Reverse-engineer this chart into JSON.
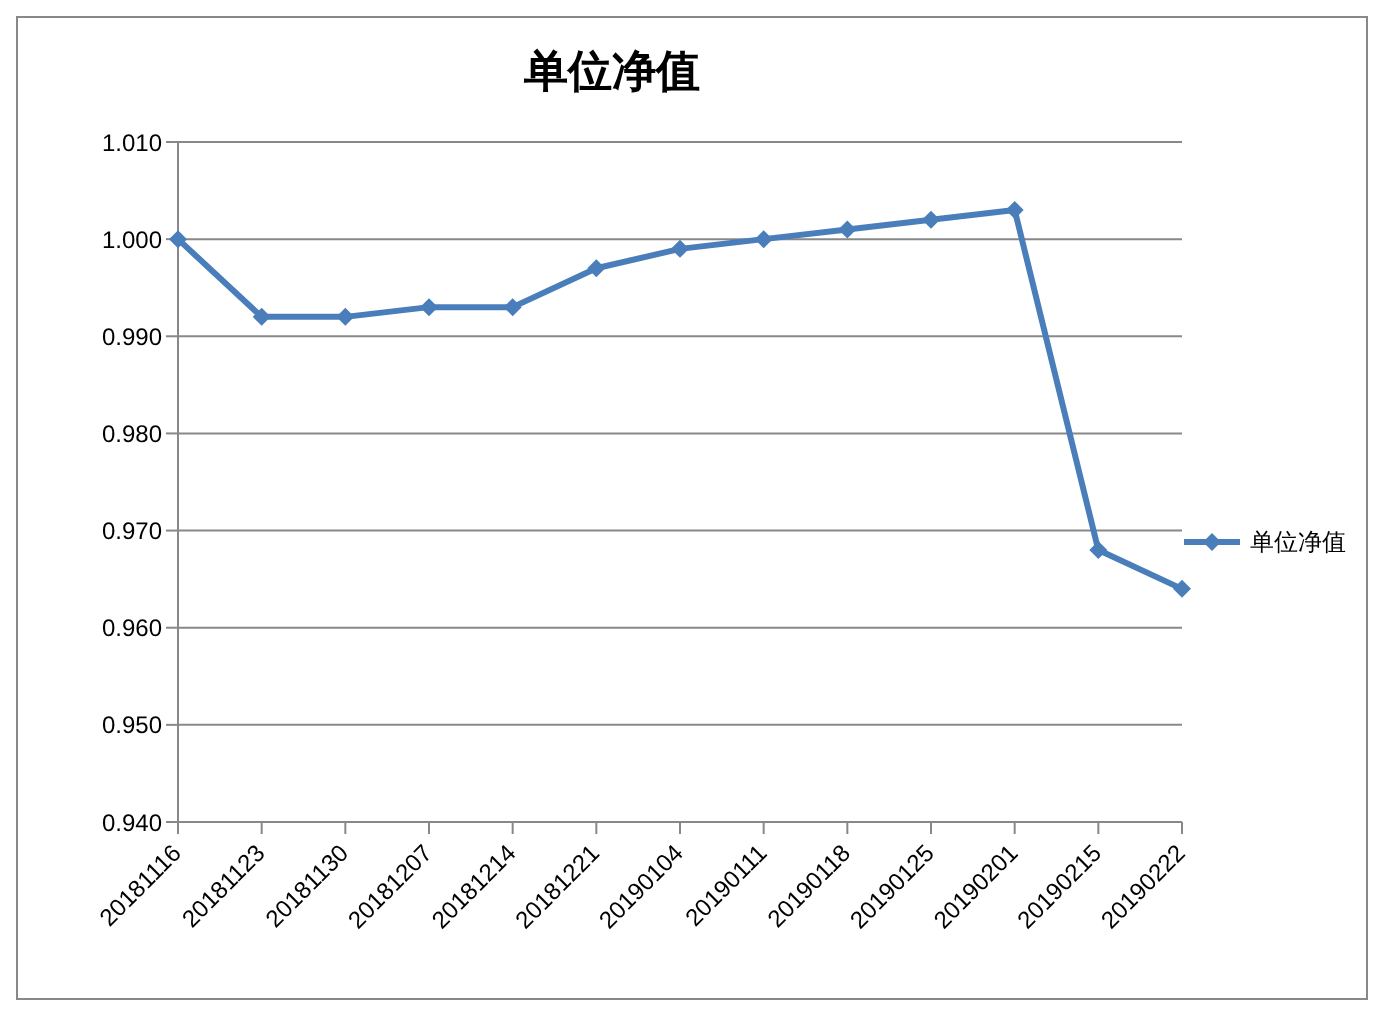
{
  "chart_data": {
    "type": "line",
    "title": "单位净值",
    "categories": [
      "20181116",
      "20181123",
      "20181130",
      "20181207",
      "20181214",
      "20181221",
      "20190104",
      "20190111",
      "20190118",
      "20190125",
      "20190201",
      "20190215",
      "20190222"
    ],
    "series": [
      {
        "name": "单位净值",
        "color": "#4a7ebb",
        "values": [
          1.0,
          0.992,
          0.992,
          0.993,
          0.993,
          0.997,
          0.999,
          1.0,
          1.001,
          1.002,
          1.003,
          0.968,
          0.964
        ]
      }
    ],
    "ylim": [
      0.94,
      1.01
    ],
    "yticks": [
      {
        "value": 0.94,
        "label": "0.940"
      },
      {
        "value": 0.95,
        "label": "0.950"
      },
      {
        "value": 0.96,
        "label": "0.960"
      },
      {
        "value": 0.97,
        "label": "0.970"
      },
      {
        "value": 0.98,
        "label": "0.980"
      },
      {
        "value": 0.99,
        "label": "0.990"
      },
      {
        "value": 1.0,
        "label": "1.000"
      },
      {
        "value": 1.01,
        "label": "1.010"
      }
    ],
    "grid": "y",
    "legend": "right",
    "marker": "diamond",
    "line_style": "solid"
  }
}
